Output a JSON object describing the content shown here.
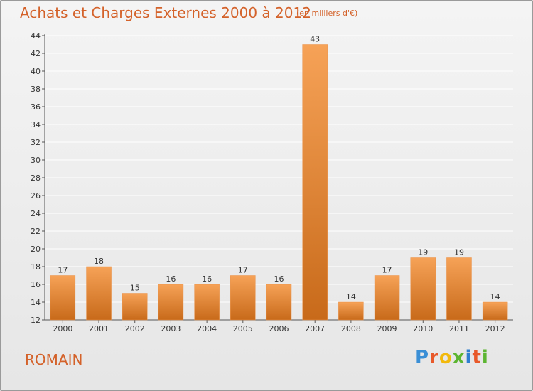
{
  "title": "Achats et Charges Externes 2000 à 2012",
  "subtitle": "(en milliers d'€)",
  "commune": "ROMAIN",
  "logo": {
    "text": "Proxiti",
    "letter_colors": [
      "#3a8fd6",
      "#e8592a",
      "#f2b90c",
      "#5cb531",
      "#2f7fd1",
      "#e8592a",
      "#5cb531"
    ]
  },
  "colors": {
    "bar_top": "#f6a257",
    "bar_bottom": "#c86a1a",
    "grid": "#ffffff",
    "axis_text": "#333333",
    "title": "#d4622a"
  },
  "chart_data": {
    "type": "bar",
    "categories": [
      "2000",
      "2001",
      "2002",
      "2003",
      "2004",
      "2005",
      "2006",
      "2007",
      "2008",
      "2009",
      "2010",
      "2011",
      "2012"
    ],
    "values": [
      17,
      18,
      15,
      16,
      16,
      17,
      16,
      43,
      14,
      17,
      19,
      19,
      14
    ],
    "title": "Achats et Charges Externes 2000 à 2012",
    "subtitle": "(en milliers d'€)",
    "ylim": [
      12,
      44
    ],
    "yticks": [
      12,
      14,
      16,
      18,
      20,
      22,
      24,
      26,
      28,
      30,
      32,
      34,
      36,
      38,
      40,
      42,
      44
    ],
    "grid": true,
    "data_labels": true
  }
}
